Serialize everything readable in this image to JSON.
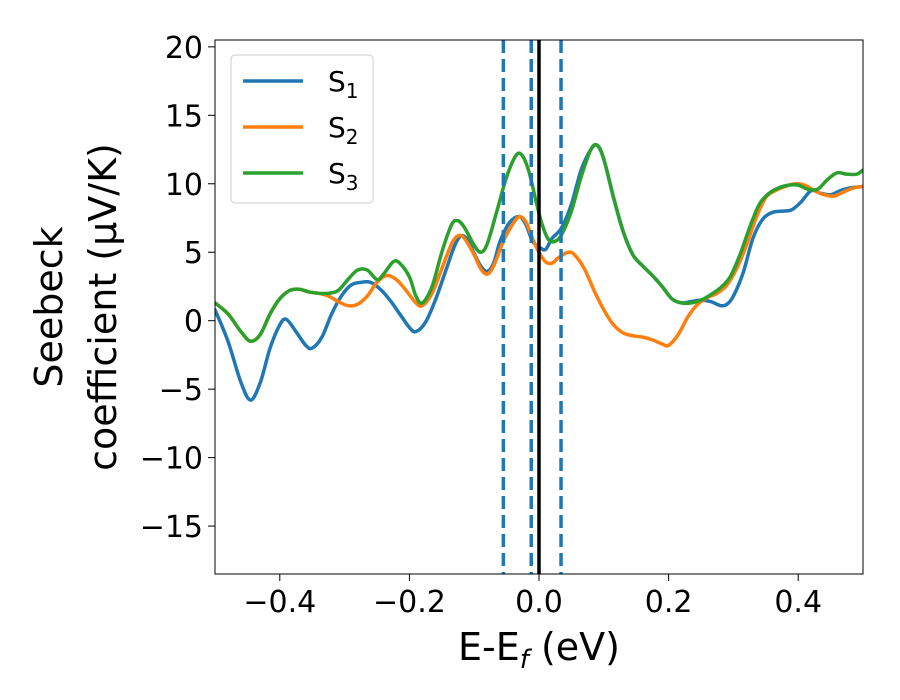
{
  "chart_data": {
    "type": "line",
    "title": "",
    "xlabel": "E-E",
    "xlabel_sub": "f",
    "xlabel_unit": " (eV)",
    "ylabel_line1": "Seebeck",
    "ylabel_line2": "coefficient  (μV/K)",
    "xlim": [
      -0.5,
      0.5
    ],
    "ylim": [
      -18.5,
      20.5
    ],
    "xticks": [
      -0.4,
      -0.2,
      0.0,
      0.2,
      0.4
    ],
    "xtick_labels": [
      "−0.4",
      "−0.2",
      "0.0",
      "0.2",
      "0.4"
    ],
    "yticks": [
      -15,
      -10,
      -5,
      0,
      5,
      10,
      15,
      20
    ],
    "ytick_labels": [
      "−15",
      "−10",
      "−5",
      "0",
      "5",
      "10",
      "15",
      "20"
    ],
    "legend_position": "top-left",
    "vlines": [
      {
        "x": -0.055,
        "style": "dashed",
        "color": "#1f77b4"
      },
      {
        "x": -0.012,
        "style": "dashed",
        "color": "#1f77b4"
      },
      {
        "x": 0.034,
        "style": "dashed",
        "color": "#1f77b4"
      },
      {
        "x": 0.0,
        "style": "solid",
        "color": "#000000"
      }
    ],
    "series": [
      {
        "name": "S",
        "sub": "1",
        "color": "#1f77b4",
        "points": [
          [
            -0.5,
            0.8
          ],
          [
            -0.48,
            -1.5
          ],
          [
            -0.46,
            -4.5
          ],
          [
            -0.445,
            -5.8
          ],
          [
            -0.43,
            -4.5
          ],
          [
            -0.415,
            -2.0
          ],
          [
            -0.4,
            -0.3
          ],
          [
            -0.39,
            0.1
          ],
          [
            -0.375,
            -0.8
          ],
          [
            -0.36,
            -1.8
          ],
          [
            -0.35,
            -2.0
          ],
          [
            -0.335,
            -1.2
          ],
          [
            -0.32,
            0.5
          ],
          [
            -0.305,
            1.8
          ],
          [
            -0.29,
            2.6
          ],
          [
            -0.275,
            2.8
          ],
          [
            -0.26,
            2.8
          ],
          [
            -0.245,
            2.3
          ],
          [
            -0.23,
            1.5
          ],
          [
            -0.215,
            0.5
          ],
          [
            -0.2,
            -0.5
          ],
          [
            -0.19,
            -0.8
          ],
          [
            -0.175,
            -0.1
          ],
          [
            -0.16,
            1.5
          ],
          [
            -0.145,
            3.5
          ],
          [
            -0.13,
            5.5
          ],
          [
            -0.12,
            6.2
          ],
          [
            -0.11,
            5.9
          ],
          [
            -0.1,
            4.9
          ],
          [
            -0.09,
            4.0
          ],
          [
            -0.08,
            3.6
          ],
          [
            -0.07,
            4.2
          ],
          [
            -0.06,
            5.8
          ],
          [
            -0.045,
            7.2
          ],
          [
            -0.03,
            7.6
          ],
          [
            -0.02,
            7.0
          ],
          [
            -0.01,
            5.8
          ],
          [
            0.0,
            5.4
          ],
          [
            0.01,
            5.2
          ],
          [
            0.02,
            6.0
          ],
          [
            0.035,
            6.8
          ],
          [
            0.05,
            8.5
          ],
          [
            0.065,
            11.0
          ],
          [
            0.08,
            12.5
          ],
          [
            0.09,
            12.8
          ],
          [
            0.1,
            11.8
          ],
          [
            0.115,
            9.0
          ],
          [
            0.13,
            6.5
          ],
          [
            0.145,
            4.8
          ],
          [
            0.16,
            4.0
          ],
          [
            0.175,
            3.3
          ],
          [
            0.19,
            2.5
          ],
          [
            0.205,
            1.6
          ],
          [
            0.22,
            1.3
          ],
          [
            0.235,
            1.4
          ],
          [
            0.25,
            1.5
          ],
          [
            0.265,
            1.4
          ],
          [
            0.28,
            1.1
          ],
          [
            0.29,
            1.2
          ],
          [
            0.3,
            1.8
          ],
          [
            0.315,
            3.5
          ],
          [
            0.33,
            6.0
          ],
          [
            0.345,
            7.4
          ],
          [
            0.36,
            7.9
          ],
          [
            0.375,
            8.0
          ],
          [
            0.39,
            8.1
          ],
          [
            0.405,
            8.7
          ],
          [
            0.42,
            9.5
          ],
          [
            0.435,
            9.3
          ],
          [
            0.45,
            9.2
          ],
          [
            0.465,
            9.5
          ],
          [
            0.48,
            9.7
          ],
          [
            0.5,
            9.8
          ]
        ]
      },
      {
        "name": "S",
        "sub": "2",
        "color": "#ff7f0e",
        "points": [
          [
            -0.5,
            1.3
          ],
          [
            -0.48,
            0.5
          ],
          [
            -0.46,
            -0.8
          ],
          [
            -0.445,
            -1.5
          ],
          [
            -0.43,
            -1.0
          ],
          [
            -0.415,
            0.5
          ],
          [
            -0.4,
            1.6
          ],
          [
            -0.385,
            2.2
          ],
          [
            -0.37,
            2.3
          ],
          [
            -0.355,
            2.1
          ],
          [
            -0.34,
            2.0
          ],
          [
            -0.325,
            1.8
          ],
          [
            -0.31,
            1.4
          ],
          [
            -0.295,
            1.1
          ],
          [
            -0.28,
            1.2
          ],
          [
            -0.265,
            1.8
          ],
          [
            -0.25,
            2.8
          ],
          [
            -0.235,
            3.3
          ],
          [
            -0.22,
            3.0
          ],
          [
            -0.205,
            2.2
          ],
          [
            -0.19,
            1.3
          ],
          [
            -0.18,
            1.1
          ],
          [
            -0.165,
            2.0
          ],
          [
            -0.15,
            3.8
          ],
          [
            -0.135,
            5.6
          ],
          [
            -0.125,
            6.2
          ],
          [
            -0.115,
            6.0
          ],
          [
            -0.1,
            4.8
          ],
          [
            -0.09,
            3.8
          ],
          [
            -0.08,
            3.4
          ],
          [
            -0.07,
            4.0
          ],
          [
            -0.055,
            5.8
          ],
          [
            -0.04,
            7.1
          ],
          [
            -0.03,
            7.6
          ],
          [
            -0.02,
            7.2
          ],
          [
            -0.01,
            6.0
          ],
          [
            0.0,
            5.0
          ],
          [
            0.01,
            4.3
          ],
          [
            0.02,
            4.2
          ],
          [
            0.03,
            4.6
          ],
          [
            0.045,
            5.0
          ],
          [
            0.055,
            4.8
          ],
          [
            0.07,
            3.8
          ],
          [
            0.085,
            2.2
          ],
          [
            0.1,
            0.8
          ],
          [
            0.115,
            -0.3
          ],
          [
            0.13,
            -0.9
          ],
          [
            0.145,
            -1.1
          ],
          [
            0.16,
            -1.2
          ],
          [
            0.175,
            -1.4
          ],
          [
            0.19,
            -1.7
          ],
          [
            0.2,
            -1.8
          ],
          [
            0.215,
            -1.0
          ],
          [
            0.23,
            0.3
          ],
          [
            0.245,
            1.2
          ],
          [
            0.26,
            1.7
          ],
          [
            0.275,
            2.0
          ],
          [
            0.29,
            2.6
          ],
          [
            0.305,
            3.8
          ],
          [
            0.32,
            5.5
          ],
          [
            0.335,
            7.5
          ],
          [
            0.35,
            9.0
          ],
          [
            0.365,
            9.5
          ],
          [
            0.38,
            9.8
          ],
          [
            0.395,
            10.0
          ],
          [
            0.41,
            9.9
          ],
          [
            0.425,
            9.5
          ],
          [
            0.44,
            9.2
          ],
          [
            0.455,
            9.1
          ],
          [
            0.47,
            9.4
          ],
          [
            0.485,
            9.7
          ],
          [
            0.5,
            9.8
          ]
        ]
      },
      {
        "name": "S",
        "sub": "3",
        "color": "#2ca02c",
        "points": [
          [
            -0.5,
            1.3
          ],
          [
            -0.48,
            0.5
          ],
          [
            -0.46,
            -0.8
          ],
          [
            -0.445,
            -1.5
          ],
          [
            -0.43,
            -1.0
          ],
          [
            -0.415,
            0.5
          ],
          [
            -0.4,
            1.6
          ],
          [
            -0.385,
            2.2
          ],
          [
            -0.37,
            2.3
          ],
          [
            -0.355,
            2.1
          ],
          [
            -0.34,
            2.0
          ],
          [
            -0.325,
            2.0
          ],
          [
            -0.31,
            2.2
          ],
          [
            -0.295,
            3.0
          ],
          [
            -0.28,
            3.7
          ],
          [
            -0.265,
            3.7
          ],
          [
            -0.25,
            3.0
          ],
          [
            -0.24,
            3.4
          ],
          [
            -0.225,
            4.3
          ],
          [
            -0.215,
            4.2
          ],
          [
            -0.2,
            3.2
          ],
          [
            -0.19,
            1.8
          ],
          [
            -0.18,
            1.3
          ],
          [
            -0.165,
            2.5
          ],
          [
            -0.15,
            5.0
          ],
          [
            -0.135,
            7.0
          ],
          [
            -0.125,
            7.3
          ],
          [
            -0.115,
            6.8
          ],
          [
            -0.1,
            5.5
          ],
          [
            -0.09,
            5.0
          ],
          [
            -0.08,
            5.6
          ],
          [
            -0.065,
            8.0
          ],
          [
            -0.05,
            10.5
          ],
          [
            -0.035,
            12.1
          ],
          [
            -0.025,
            12.0
          ],
          [
            -0.015,
            10.8
          ],
          [
            -0.005,
            8.8
          ],
          [
            0.005,
            7.0
          ],
          [
            0.015,
            5.9
          ],
          [
            0.025,
            5.8
          ],
          [
            0.035,
            6.3
          ],
          [
            0.05,
            8.0
          ],
          [
            0.065,
            10.5
          ],
          [
            0.08,
            12.5
          ],
          [
            0.09,
            12.8
          ],
          [
            0.1,
            11.8
          ],
          [
            0.115,
            9.0
          ],
          [
            0.13,
            6.5
          ],
          [
            0.145,
            4.8
          ],
          [
            0.16,
            4.0
          ],
          [
            0.175,
            3.3
          ],
          [
            0.19,
            2.5
          ],
          [
            0.205,
            1.6
          ],
          [
            0.22,
            1.3
          ],
          [
            0.235,
            1.3
          ],
          [
            0.25,
            1.5
          ],
          [
            0.265,
            1.9
          ],
          [
            0.28,
            2.4
          ],
          [
            0.295,
            3.2
          ],
          [
            0.31,
            4.8
          ],
          [
            0.325,
            6.8
          ],
          [
            0.34,
            8.5
          ],
          [
            0.355,
            9.3
          ],
          [
            0.37,
            9.7
          ],
          [
            0.385,
            9.9
          ],
          [
            0.4,
            9.9
          ],
          [
            0.415,
            9.6
          ],
          [
            0.43,
            9.6
          ],
          [
            0.445,
            10.3
          ],
          [
            0.46,
            10.8
          ],
          [
            0.475,
            10.7
          ],
          [
            0.49,
            10.7
          ],
          [
            0.5,
            11.0
          ]
        ]
      }
    ]
  }
}
